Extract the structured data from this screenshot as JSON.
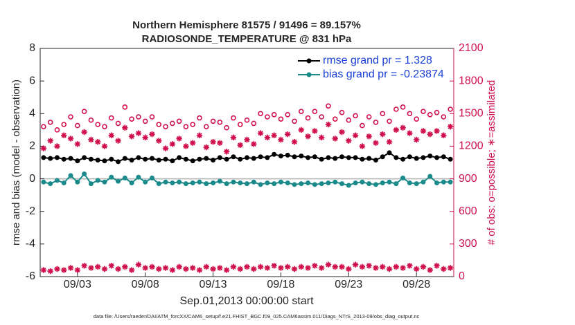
{
  "chart_data": {
    "type": "line",
    "title": "Northern Hemisphere 81575 / 91496 = 89.157%",
    "subtitle": "RADIOSONDE_TEMPERATURE @ 831 hPa",
    "x_label": "Sep.01,2013 00:00:00 start",
    "y_label": "rmse and bias (model - observation)",
    "y2_label": "# of obs: o=possible; ∗=assimilated",
    "footnote": "data file: /Users/raeder/DAI/ATM_forcXX/CAM6_setup/f.e21.FHIST_BGC.f09_025.CAM6assim.011/Diags_NTrS_2013-09/obs_diag_output.nc",
    "x": [
      -0.5,
      0,
      0.5,
      1,
      1.5,
      2,
      2.5,
      3,
      3.5,
      4,
      4.5,
      5,
      5.5,
      6,
      6.5,
      7,
      7.5,
      8,
      8.5,
      9,
      9.5,
      10,
      10.5,
      11,
      11.5,
      12,
      12.5,
      13,
      13.5,
      14,
      14.5,
      15,
      15.5,
      16,
      16.5,
      17,
      17.5,
      18,
      18.5,
      19,
      19.5,
      20,
      20.5,
      21,
      21.5,
      22,
      22.5,
      23,
      23.5,
      24,
      24.5,
      25,
      25.5,
      26,
      26.5,
      27,
      27.5,
      28,
      28.5,
      29,
      29.5
    ],
    "xlim": [
      -0.75,
      29.75
    ],
    "xticks": [
      {
        "value": 2,
        "label": "09/03"
      },
      {
        "value": 7,
        "label": "09/08"
      },
      {
        "value": 12,
        "label": "09/13"
      },
      {
        "value": 17,
        "label": "09/18"
      },
      {
        "value": 22,
        "label": "09/23"
      },
      {
        "value": 27,
        "label": "09/28"
      }
    ],
    "ylim": [
      -6,
      8
    ],
    "yticks": [
      -6,
      -4,
      -2,
      0,
      2,
      4,
      6,
      8
    ],
    "y2lim": [
      0,
      2100
    ],
    "y2ticks": [
      0,
      300,
      600,
      900,
      1200,
      1500,
      1800,
      2100
    ],
    "legend": "upper right",
    "series": [
      {
        "name": "rmse grand pr = 1.328",
        "color": "#000000",
        "marker": "dot",
        "line": true,
        "values": [
          1.3,
          1.25,
          1.3,
          1.2,
          1.25,
          1.1,
          1.3,
          1.2,
          1.15,
          1.1,
          1.2,
          1.05,
          1.25,
          1.15,
          1.3,
          1.2,
          1.25,
          1.15,
          1.2,
          1.1,
          1.3,
          1.2,
          1.1,
          1.2,
          1.25,
          1.15,
          1.3,
          1.2,
          1.35,
          1.2,
          1.3,
          1.25,
          1.35,
          1.3,
          1.5,
          1.4,
          1.45,
          1.35,
          1.4,
          1.3,
          1.35,
          1.2,
          1.3,
          1.25,
          1.35,
          1.3,
          1.3,
          1.2,
          1.25,
          1.15,
          1.35,
          1.6,
          1.3,
          1.2,
          1.35,
          1.25,
          1.3,
          1.4,
          1.3,
          1.35,
          1.2
        ]
      },
      {
        "name": "bias grand pr = -0.23874",
        "color": "#1a8a8a",
        "marker": "dot",
        "line": true,
        "values": [
          -0.2,
          -0.3,
          -0.1,
          -0.25,
          0.2,
          -0.2,
          0.3,
          -0.3,
          -0.1,
          -0.2,
          0.1,
          -0.15,
          0.05,
          -0.25,
          0.1,
          -0.2,
          0.05,
          -0.3,
          -0.2,
          -0.25,
          -0.2,
          -0.3,
          -0.25,
          -0.2,
          -0.3,
          -0.25,
          -0.15,
          -0.3,
          -0.2,
          -0.25,
          -0.3,
          -0.2,
          -0.35,
          -0.25,
          -0.3,
          -0.2,
          -0.25,
          -0.35,
          -0.3,
          -0.25,
          -0.35,
          -0.3,
          -0.25,
          -0.2,
          -0.3,
          -0.4,
          -0.25,
          -0.2,
          -0.3,
          -0.35,
          -0.25,
          -0.2,
          -0.3,
          0.05,
          -0.25,
          -0.3,
          -0.2,
          0.15,
          -0.25,
          -0.2,
          -0.2
        ]
      },
      {
        "color": "#d0104c",
        "marker": "circle",
        "line": false,
        "axis": "y2",
        "values": [
          1380,
          1420,
          1350,
          1400,
          1470,
          1390,
          1520,
          1440,
          1400,
          1380,
          1460,
          1410,
          1560,
          1450,
          1470,
          1430,
          1470,
          1400,
          1380,
          1410,
          1430,
          1380,
          1400,
          1460,
          1380,
          1430,
          1420,
          1370,
          1460,
          1400,
          1440,
          1410,
          1500,
          1470,
          1490,
          1450,
          1490,
          1430,
          1520,
          1460,
          1520,
          1470,
          1570,
          1450,
          1510,
          1440,
          1480,
          1390,
          1470,
          1420,
          1500,
          1430,
          1540,
          1560,
          1500,
          1450,
          1520,
          1490,
          1510,
          1470,
          1540
        ]
      },
      {
        "color": "#d0104c",
        "marker": "asterisk",
        "line": false,
        "axis": "y2",
        "values": [
          1180,
          1250,
          1200,
          1300,
          1270,
          1220,
          1330,
          1260,
          1240,
          1200,
          1300,
          1250,
          1370,
          1290,
          1320,
          1280,
          1310,
          1250,
          1180,
          1220,
          1270,
          1200,
          1230,
          1300,
          1190,
          1240,
          1230,
          1150,
          1280,
          1210,
          1260,
          1220,
          1320,
          1280,
          1300,
          1260,
          1310,
          1240,
          1350,
          1290,
          1340,
          1280,
          1400,
          1270,
          1330,
          1250,
          1300,
          1200,
          1290,
          1230,
          1310,
          1240,
          1350,
          1370,
          1320,
          1260,
          1340,
          1310,
          1340,
          1300,
          1380
        ]
      },
      {
        "color": "#d0104c",
        "marker": "asterisk",
        "line": false,
        "axis": "y2",
        "values": [
          60,
          50,
          70,
          60,
          80,
          60,
          100,
          80,
          90,
          70,
          100,
          70,
          90,
          60,
          110,
          80,
          90,
          70,
          80,
          60,
          90,
          70,
          80,
          60,
          90,
          70,
          80,
          60,
          90,
          70,
          90,
          70,
          90,
          80,
          100,
          80,
          90,
          70,
          90,
          80,
          100,
          80,
          110,
          90,
          90,
          70,
          110,
          90,
          100,
          80,
          90,
          70,
          90,
          80,
          100,
          70,
          90,
          60,
          100,
          70,
          80
        ]
      }
    ]
  }
}
